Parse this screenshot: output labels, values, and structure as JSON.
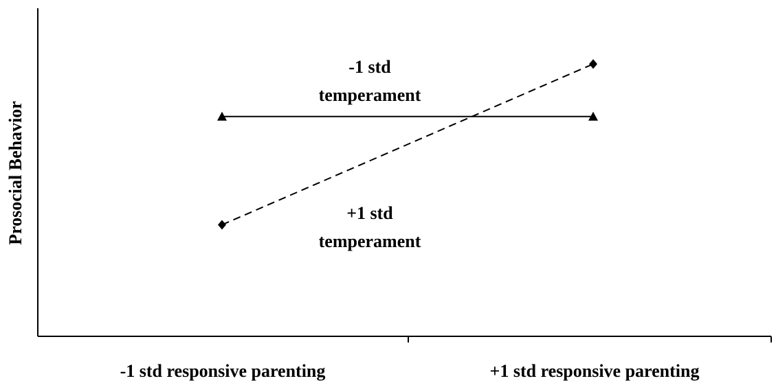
{
  "chart_data": {
    "type": "line",
    "title": "",
    "xlabel": "",
    "ylabel": "Prosocial Behavior",
    "categories": [
      "-1 std responsive parenting",
      "+1 std responsive parenting"
    ],
    "series": [
      {
        "name": "-1 std temperament",
        "values": [
          0.67,
          0.67
        ],
        "marker": "triangle",
        "line": "solid",
        "color": "#000000"
      },
      {
        "name": "+1 std temperament",
        "values": [
          0.34,
          0.83
        ],
        "marker": "diamond",
        "line": "dashed",
        "color": "#000000"
      }
    ],
    "ylim": [
      0,
      1
    ],
    "grid": false,
    "y_ticks": false,
    "annotations": [
      {
        "lines": [
          "-1 std",
          "temperament"
        ],
        "series": 0
      },
      {
        "lines": [
          "+1 std",
          "temperament"
        ],
        "series": 1
      }
    ]
  }
}
